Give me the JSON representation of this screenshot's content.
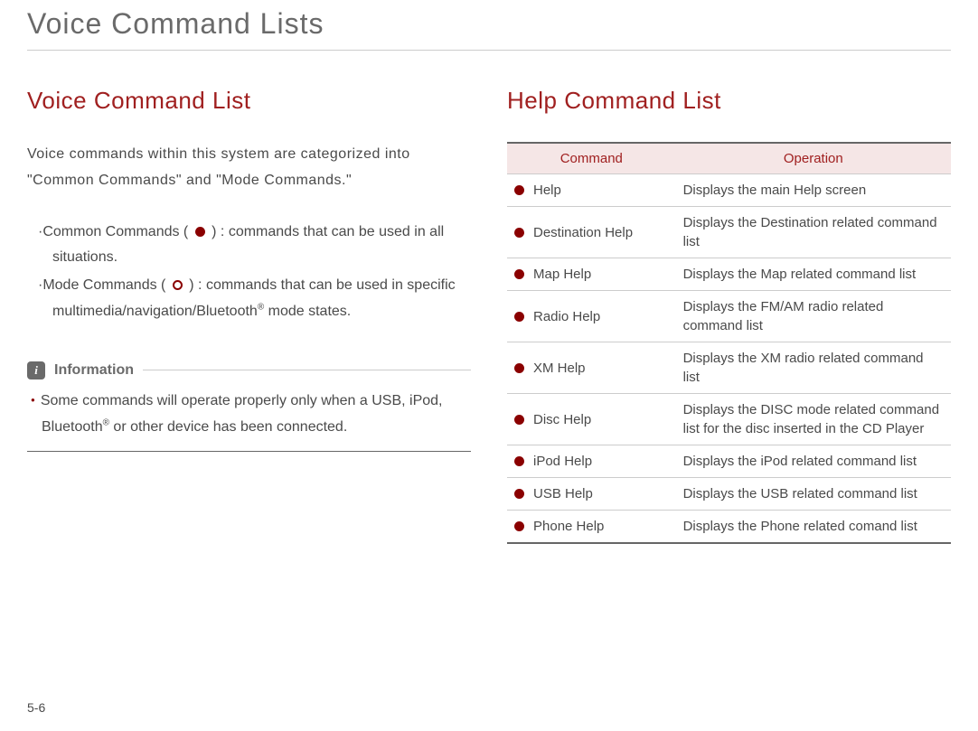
{
  "page_title": "Voice Command Lists",
  "page_number": "5-6",
  "left": {
    "section_title": "Voice Command List",
    "intro": "Voice commands within this system are categorized into \"Common Commands\" and \"Mode Commands.\"",
    "bullets": [
      {
        "prefix": "·Common Commands ( ",
        "suffix": " ) : commands that can be used in all situations."
      },
      {
        "prefix": "·Mode Commands ( ",
        "suffix": " ) : commands that can be used in specific multimedia/navigation/Bluetooth® mode states."
      }
    ],
    "info_label": "Information",
    "info_text": "Some commands will operate properly only when a USB, iPod, Bluetooth® or other device has been connected."
  },
  "right": {
    "section_title": "Help Command List",
    "table_headers": {
      "command": "Command",
      "operation": "Operation"
    },
    "rows": [
      {
        "command": "Help",
        "operation": "Displays the main Help screen"
      },
      {
        "command": "Destination Help",
        "operation": "Displays the Destination related command list"
      },
      {
        "command": "Map Help",
        "operation": "Displays the Map related command list"
      },
      {
        "command": "Radio Help",
        "operation": "Displays the FM/AM radio related command list"
      },
      {
        "command": "XM Help",
        "operation": "Displays the XM radio related command list"
      },
      {
        "command": "Disc Help",
        "operation": "Displays the DISC mode related command list for the disc inserted in the CD Player"
      },
      {
        "command": "iPod Help",
        "operation": "Displays the iPod related command list"
      },
      {
        "command": "USB Help",
        "operation": "Displays the USB related command list"
      },
      {
        "command": "Phone Help",
        "operation": "Displays the Phone related comand list"
      }
    ]
  },
  "colors": {
    "title_color": "#6a6a6a",
    "accent_red": "#a02020",
    "dot_red": "#8a0000",
    "table_header_bg": "#f5e6e6",
    "text_color": "#4a4a4a"
  }
}
